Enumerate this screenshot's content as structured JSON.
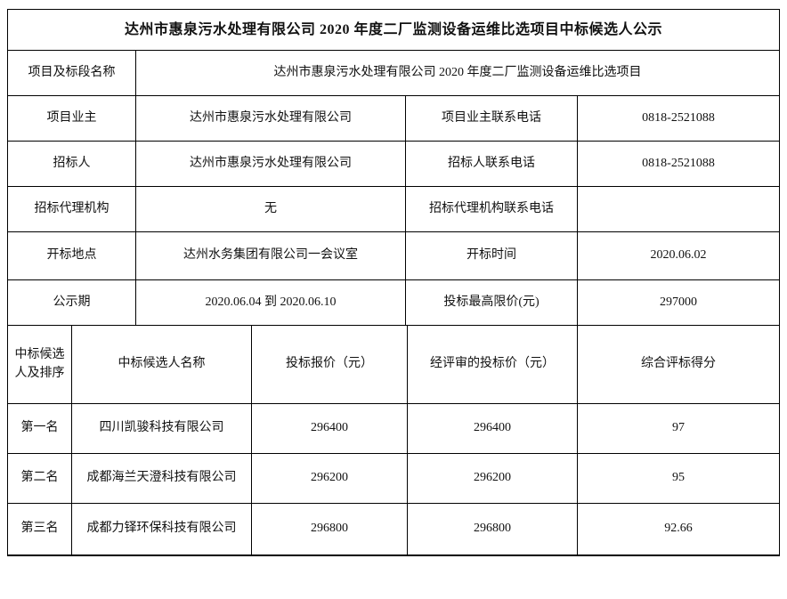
{
  "title": "达州市惠泉污水处理有限公司 2020 年度二厂监测设备运维比选项目中标候选人公示",
  "project": {
    "section_label": "项目及标段名称",
    "section_value": "达州市惠泉污水处理有限公司 2020 年度二厂监测设备运维比选项目"
  },
  "info_rows": [
    {
      "label1": "项目业主",
      "value1": "达州市惠泉污水处理有限公司",
      "label2": "项目业主联系电话",
      "value2": "0818-2521088"
    },
    {
      "label1": "招标人",
      "value1": "达州市惠泉污水处理有限公司",
      "label2": "招标人联系电话",
      "value2": "0818-2521088"
    },
    {
      "label1": "招标代理机构",
      "value1": "无",
      "label2": "招标代理机构联系电话",
      "value2": ""
    },
    {
      "label1": "开标地点",
      "value1": "达州水务集团有限公司一会议室",
      "label2": "开标时间",
      "value2": "2020.06.02"
    },
    {
      "label1": "公示期",
      "value1": "2020.06.04 到 2020.06.10",
      "label2": "投标最高限价(元)",
      "value2": "297000"
    }
  ],
  "candidates": {
    "headers": {
      "rank": "中标候选人及排序",
      "name": "中标候选人名称",
      "bid": "投标报价（元）",
      "evaluated": "经评审的投标价（元）",
      "score": "综合评标得分"
    },
    "rows": [
      {
        "rank": "第一名",
        "name": "四川凯骏科技有限公司",
        "bid": "296400",
        "evaluated": "296400",
        "score": "97"
      },
      {
        "rank": "第二名",
        "name": "成都海兰天澄科技有限公司",
        "bid": "296200",
        "evaluated": "296200",
        "score": "95"
      },
      {
        "rank": "第三名",
        "name": "成都力铎环保科技有限公司",
        "bid": "296800",
        "evaluated": "296800",
        "score": "92.66"
      }
    ]
  },
  "colors": {
    "border": "#000000",
    "text": "#111111",
    "background": "#ffffff"
  }
}
